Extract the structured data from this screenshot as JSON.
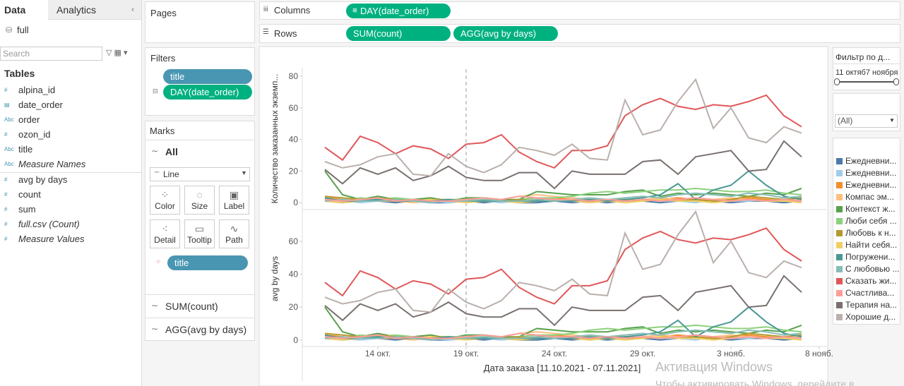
{
  "sidebar": {
    "tabs": [
      "Data",
      "Analytics"
    ],
    "source": "full",
    "search": "Search",
    "tables_heading": "Tables",
    "dimensions": [
      {
        "icon": "#",
        "name": "alpina_id"
      },
      {
        "icon": "▤",
        "name": "date_order"
      },
      {
        "icon": "Abc",
        "name": "order"
      },
      {
        "icon": "#",
        "name": "ozon_id"
      },
      {
        "icon": "Abc",
        "name": "title"
      },
      {
        "icon": "Abc",
        "name": "Measure Names"
      }
    ],
    "measures": [
      {
        "icon": "#",
        "name": "avg by days"
      },
      {
        "icon": "#",
        "name": "count"
      },
      {
        "icon": "#",
        "name": "sum"
      },
      {
        "icon": "#",
        "name": "full.csv (Count)"
      },
      {
        "icon": "#",
        "name": "Measure Values"
      }
    ]
  },
  "shelves": {
    "pages": "Pages",
    "filters": "Filters",
    "filter_pills": [
      "title",
      "DAY(date_order)"
    ],
    "marks": "Marks",
    "marks_all": "All",
    "mark_type": "Line",
    "mark_buttons": [
      "Color",
      "Size",
      "Label",
      "Detail",
      "Tooltip",
      "Path"
    ],
    "color_pill": "title",
    "measure_cards": [
      "SUM(count)",
      "AGG(avg by days)"
    ],
    "columns": "Columns",
    "rows": "Rows",
    "column_pills": [
      "DAY(date_order)"
    ],
    "row_pills": [
      "SUM(count)",
      "AGG(avg by days)"
    ]
  },
  "filter_card": {
    "title": "Фильтр по д...",
    "range": "11 октяб7 ноября",
    "dropdown": "(All)"
  },
  "watermark": {
    "title": "Активация Windows",
    "text": "Чтобы активировать Windows, перейдите в"
  },
  "chart_data": {
    "type": "line",
    "x_label": "Дата заказа [11.10.2021 - 07.11.2021]",
    "xlim": [
      "2021-10-10",
      "2021-11-08"
    ],
    "xticks": [
      {
        "value": "2021-10-14",
        "label": "14 окт."
      },
      {
        "value": "2021-10-19",
        "label": "19 окт."
      },
      {
        "value": "2021-10-24",
        "label": "24 окт."
      },
      {
        "value": "2021-10-29",
        "label": "29 окт."
      },
      {
        "value": "2021-11-03",
        "label": "3 нояб."
      },
      {
        "value": "2021-11-08",
        "label": "8 нояб."
      }
    ],
    "panels": [
      {
        "y_label": "Количество заказанных экземп...",
        "ylim": [
          -3.5,
          84.5
        ],
        "yticks": [
          0,
          20,
          40,
          60,
          80
        ]
      },
      {
        "y_label": "avg by days",
        "ylim": [
          -3.5,
          78
        ],
        "yticks": [
          0,
          20,
          40,
          60
        ]
      }
    ],
    "x": [
      "2021-10-11",
      "2021-10-12",
      "2021-10-13",
      "2021-10-14",
      "2021-10-15",
      "2021-10-16",
      "2021-10-17",
      "2021-10-18",
      "2021-10-19",
      "2021-10-20",
      "2021-10-21",
      "2021-10-22",
      "2021-10-23",
      "2021-10-24",
      "2021-10-25",
      "2021-10-26",
      "2021-10-27",
      "2021-10-28",
      "2021-10-29",
      "2021-10-30",
      "2021-10-31",
      "2021-11-01",
      "2021-11-02",
      "2021-11-03",
      "2021-11-04",
      "2021-11-05",
      "2021-11-06",
      "2021-11-07"
    ],
    "series": [
      {
        "name": "Ежедневни...",
        "color": "#4e79a7",
        "values": [
          1,
          0,
          1,
          1,
          0,
          1,
          0,
          0,
          1,
          0,
          1,
          0,
          0,
          1,
          0,
          1,
          0,
          1,
          1,
          0,
          1,
          2,
          1,
          0,
          1,
          1,
          0,
          1
        ]
      },
      {
        "name": "Ежедневни...",
        "color": "#a0cbe8",
        "values": [
          2,
          1,
          0,
          1,
          2,
          1,
          1,
          0,
          1,
          1,
          0,
          1,
          2,
          1,
          1,
          0,
          1,
          1,
          2,
          1,
          1,
          0,
          2,
          1,
          1,
          2,
          1,
          1
        ]
      },
      {
        "name": "Ежедневни...",
        "color": "#f28e2b",
        "values": [
          3,
          2,
          1,
          2,
          1,
          2,
          3,
          1,
          2,
          1,
          2,
          1,
          2,
          3,
          2,
          1,
          2,
          2,
          1,
          2,
          3,
          2,
          1,
          2,
          3,
          2,
          1,
          2
        ]
      },
      {
        "name": "Компас эм...",
        "color": "#ffbe7d",
        "values": [
          2,
          1,
          2,
          1,
          1,
          0,
          1,
          2,
          1,
          1,
          2,
          4,
          5,
          4,
          3,
          2,
          2,
          1,
          2,
          3,
          2,
          1,
          2,
          3,
          2,
          1,
          1,
          2
        ]
      },
      {
        "name": "Контекст ж...",
        "color": "#59a14f",
        "values": [
          20,
          5,
          2,
          4,
          2,
          2,
          3,
          1,
          3,
          3,
          2,
          2,
          7,
          6,
          5,
          5,
          5,
          7,
          8,
          4,
          6,
          5,
          6,
          5,
          4,
          6,
          5,
          9
        ]
      },
      {
        "name": "Люби себя ...",
        "color": "#8cd17d",
        "values": [
          2,
          1,
          3,
          2,
          3,
          2,
          1,
          2,
          2,
          3,
          1,
          2,
          3,
          3,
          4,
          6,
          7,
          6,
          7,
          8,
          8,
          9,
          8,
          7,
          7,
          8,
          6,
          5
        ]
      },
      {
        "name": "Любовь к н...",
        "color": "#b6992d",
        "values": [
          4,
          3,
          2,
          3,
          2,
          1,
          2,
          2,
          1,
          2,
          1,
          2,
          1,
          1,
          2,
          1,
          1,
          2,
          1,
          2,
          1,
          2,
          1,
          2,
          4,
          3,
          2,
          3
        ]
      },
      {
        "name": "Найти себя...",
        "color": "#f1ce63",
        "values": [
          1,
          0,
          1,
          2,
          1,
          1,
          2,
          1,
          0,
          1,
          1,
          0,
          1,
          2,
          1,
          0,
          1,
          0,
          1,
          2,
          1,
          1,
          0,
          1,
          2,
          1,
          1,
          0
        ]
      },
      {
        "name": "Погружени...",
        "color": "#499894",
        "values": [
          3,
          1,
          1,
          2,
          1,
          1,
          1,
          2,
          1,
          1,
          1,
          1,
          1,
          1,
          1,
          2,
          1,
          2,
          3,
          5,
          12,
          2,
          8,
          11,
          20,
          11,
          4,
          2
        ]
      },
      {
        "name": "С любовью ...",
        "color": "#86bcb6",
        "values": [
          1,
          2,
          1,
          1,
          2,
          1,
          0,
          1,
          1,
          2,
          1,
          1,
          2,
          1,
          2,
          3,
          2,
          3,
          4,
          3,
          5,
          6,
          5,
          4,
          6,
          5,
          3,
          4
        ]
      },
      {
        "name": "Сказать жи...",
        "color": "#e15759",
        "values": [
          35,
          27,
          42,
          38,
          31,
          36,
          34,
          28,
          37,
          38,
          43,
          32,
          26,
          22,
          33,
          33,
          36,
          55,
          62,
          66,
          61,
          59,
          62,
          61,
          64,
          68,
          55,
          48
        ]
      },
      {
        "name": "Счастлива...",
        "color": "#ff9d9a",
        "values": [
          2,
          1,
          2,
          3,
          1,
          2,
          1,
          1,
          2,
          3,
          2,
          4,
          3,
          2,
          2,
          1,
          2,
          1,
          2,
          1,
          2,
          3,
          2,
          1,
          2,
          1,
          2,
          1
        ]
      },
      {
        "name": "Терапия на...",
        "color": "#79706e",
        "values": [
          21,
          12,
          22,
          18,
          22,
          14,
          17,
          23,
          16,
          14,
          14,
          19,
          19,
          9,
          20,
          18,
          18,
          18,
          26,
          27,
          18,
          29,
          31,
          33,
          20,
          21,
          39,
          29
        ]
      },
      {
        "name": "Хорошие д...",
        "color": "#bab0ac",
        "values": [
          26,
          22,
          24,
          29,
          31,
          18,
          17,
          31,
          23,
          19,
          24,
          35,
          33,
          30,
          37,
          28,
          27,
          65,
          43,
          46,
          64,
          78,
          47,
          60,
          41,
          38,
          48,
          44
        ]
      }
    ]
  }
}
